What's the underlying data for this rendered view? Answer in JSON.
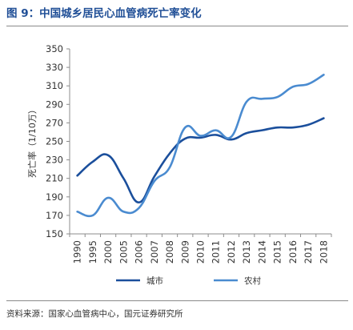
{
  "header": {
    "title": "图 9：中国城乡居民心血管病死亡率变化"
  },
  "footer": {
    "source": "资料来源：国家心血管病中心，国元证券研究所"
  },
  "chart_data": {
    "type": "line",
    "title": "",
    "xlabel": "",
    "ylabel": "死亡率（1/10万）",
    "categories": [
      "1990",
      "1995",
      "2000",
      "2005",
      "2006",
      "2007",
      "2008",
      "2009",
      "2010",
      "2011",
      "2012",
      "2013",
      "2014",
      "2015",
      "2016",
      "2017",
      "2018"
    ],
    "ylim": [
      150,
      350
    ],
    "yticks": [
      150,
      170,
      190,
      210,
      230,
      250,
      270,
      290,
      310,
      330,
      350
    ],
    "grid": false,
    "legend_position": "bottom",
    "series": [
      {
        "name": "城市",
        "color": "#1b4f9c",
        "values": [
          213,
          228,
          235,
          210,
          184,
          212,
          237,
          253,
          254,
          257,
          252,
          259,
          262,
          265,
          265,
          268,
          275
        ]
      },
      {
        "name": "农村",
        "color": "#4a8bd0",
        "values": [
          174,
          170,
          189,
          174,
          178,
          207,
          222,
          265,
          256,
          262,
          255,
          293,
          296,
          298,
          309,
          312,
          322
        ]
      }
    ]
  }
}
